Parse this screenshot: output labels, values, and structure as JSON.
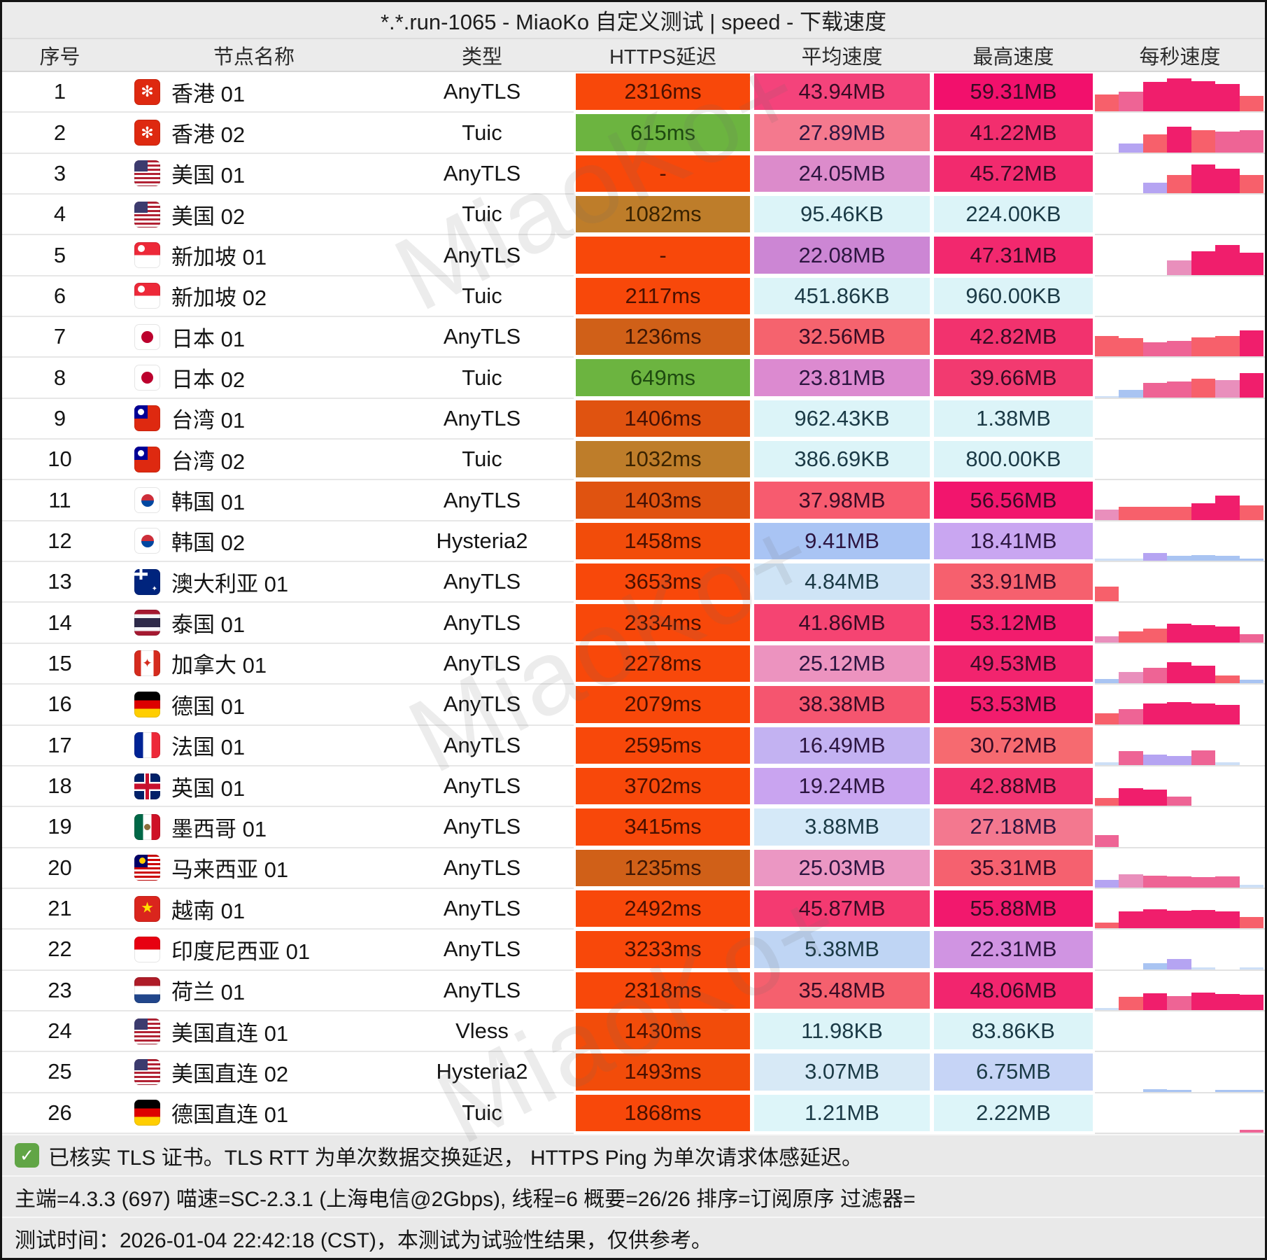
{
  "title": "*.*.run-1065 - MiaoKo 自定义测试 | speed - 下载速度",
  "columns": [
    "序号",
    "节点名称",
    "类型",
    "HTTPS延迟",
    "平均速度",
    "最高速度",
    "每秒速度"
  ],
  "watermark": "MiaoKo+",
  "bar_palette": {
    "C": "#F7606B",
    "P": "#F01E6C",
    "M": "#EE6495",
    "R": "#E98FBC",
    "U": "#B5A4F2",
    "B": "#A9C4F2",
    "L": "#CDDFF6"
  },
  "rows": [
    {
      "seq": "1",
      "flag": "hk",
      "name": "香港 01",
      "type": "AnyTLS",
      "lat": "2316ms",
      "lat_bg": "#F8480A",
      "lat_fg": "#4A1000",
      "avg": "43.94MB",
      "avg_bg": "#F4437B",
      "max": "59.31MB",
      "max_bg": "#F2106C",
      "bars": [
        [
          "C",
          45
        ],
        [
          "M",
          52
        ],
        [
          "P",
          78
        ],
        [
          "P",
          88
        ],
        [
          "P",
          80
        ],
        [
          "P",
          72
        ],
        [
          "C",
          42
        ]
      ]
    },
    {
      "seq": "2",
      "flag": "hk",
      "name": "香港 02",
      "type": "Tuic",
      "lat": "615ms",
      "lat_bg": "#6CB440",
      "lat_fg": "#1E4A10",
      "avg": "27.89MB",
      "avg_bg": "#F4798E",
      "max": "41.22MB",
      "max_bg": "#F22E6E",
      "bars": [
        [
          "",
          0
        ],
        [
          "U",
          24
        ],
        [
          "C",
          48
        ],
        [
          "P",
          68
        ],
        [
          "C",
          58
        ],
        [
          "M",
          55
        ],
        [
          "M",
          58
        ]
      ]
    },
    {
      "seq": "3",
      "flag": "us",
      "name": "美国 01",
      "type": "AnyTLS",
      "lat": "-",
      "lat_bg": "#F8480A",
      "lat_fg": "#4A1000",
      "avg": "24.05MB",
      "avg_bg": "#DC8BCB",
      "max": "45.72MB",
      "max_bg": "#F22A6E",
      "bars": [
        [
          "",
          0
        ],
        [
          "",
          0
        ],
        [
          "U",
          28
        ],
        [
          "C",
          48
        ],
        [
          "P",
          75
        ],
        [
          "P",
          64
        ],
        [
          "C",
          48
        ]
      ]
    },
    {
      "seq": "4",
      "flag": "us",
      "name": "美国 02",
      "type": "Tuic",
      "lat": "1082ms",
      "lat_bg": "#BE7D2A",
      "lat_fg": "#3A2300",
      "avg": "95.46KB",
      "avg_bg": "#DCF4F8",
      "max": "224.00KB",
      "max_bg": "#DCF4F8",
      "bars": []
    },
    {
      "seq": "5",
      "flag": "sg",
      "name": "新加坡 01",
      "type": "AnyTLS",
      "lat": "-",
      "lat_bg": "#F8480A",
      "lat_fg": "#4A1000",
      "avg": "22.08MB",
      "avg_bg": "#CC86D4",
      "max": "47.31MB",
      "max_bg": "#F2286E",
      "bars": [
        [
          "",
          0
        ],
        [
          "",
          0
        ],
        [
          "",
          0
        ],
        [
          "R",
          38
        ],
        [
          "P",
          62
        ],
        [
          "P",
          78
        ],
        [
          "P",
          58
        ]
      ]
    },
    {
      "seq": "6",
      "flag": "sg",
      "name": "新加坡 02",
      "type": "Tuic",
      "lat": "2117ms",
      "lat_bg": "#F8480A",
      "lat_fg": "#4A1000",
      "avg": "451.86KB",
      "avg_bg": "#DCF4F8",
      "max": "960.00KB",
      "max_bg": "#DCF4F8",
      "bars": []
    },
    {
      "seq": "7",
      "flag": "jp",
      "name": "日本 01",
      "type": "AnyTLS",
      "lat": "1236ms",
      "lat_bg": "#D06018",
      "lat_fg": "#401704",
      "avg": "32.56MB",
      "avg_bg": "#F5636E",
      "max": "42.82MB",
      "max_bg": "#F2326E",
      "bars": [
        [
          "C",
          55
        ],
        [
          "C",
          48
        ],
        [
          "M",
          38
        ],
        [
          "M",
          42
        ],
        [
          "C",
          50
        ],
        [
          "C",
          55
        ],
        [
          "P",
          68
        ]
      ]
    },
    {
      "seq": "8",
      "flag": "jp",
      "name": "日本 02",
      "type": "Tuic",
      "lat": "649ms",
      "lat_bg": "#6CB440",
      "lat_fg": "#1E4A10",
      "avg": "23.81MB",
      "avg_bg": "#DC8AD0",
      "max": "39.66MB",
      "max_bg": "#F23A70",
      "bars": [
        [
          "L",
          4
        ],
        [
          "B",
          20
        ],
        [
          "M",
          38
        ],
        [
          "M",
          42
        ],
        [
          "C",
          50
        ],
        [
          "R",
          46
        ],
        [
          "P",
          64
        ]
      ]
    },
    {
      "seq": "9",
      "flag": "tw",
      "name": "台湾 01",
      "type": "AnyTLS",
      "lat": "1406ms",
      "lat_bg": "#E05310",
      "lat_fg": "#441104",
      "avg": "962.43KB",
      "avg_bg": "#DCF4F8",
      "max": "1.38MB",
      "max_bg": "#DCF4F8",
      "bars": []
    },
    {
      "seq": "10",
      "flag": "tw",
      "name": "台湾 02",
      "type": "Tuic",
      "lat": "1032ms",
      "lat_bg": "#BE7D2A",
      "lat_fg": "#3A2300",
      "avg": "386.69KB",
      "avg_bg": "#DCF4F8",
      "max": "800.00KB",
      "max_bg": "#DCF4F8",
      "bars": []
    },
    {
      "seq": "11",
      "flag": "kr",
      "name": "韩国 01",
      "type": "AnyTLS",
      "lat": "1403ms",
      "lat_bg": "#E05310",
      "lat_fg": "#441104",
      "avg": "37.98MB",
      "avg_bg": "#F75B6F",
      "max": "56.56MB",
      "max_bg": "#F2156D",
      "bars": [
        [
          "R",
          28
        ],
        [
          "C",
          34
        ],
        [
          "C",
          35
        ],
        [
          "C",
          35
        ],
        [
          "P",
          44
        ],
        [
          "P",
          64
        ],
        [
          "C",
          38
        ]
      ]
    },
    {
      "seq": "12",
      "flag": "kr",
      "name": "韩国 02",
      "type": "Hysteria2",
      "lat": "1458ms",
      "lat_bg": "#F24C0A",
      "lat_fg": "#4A1000",
      "avg": "9.41MB",
      "avg_bg": "#A9C4F4",
      "max": "18.41MB",
      "max_bg": "#C9A6F1",
      "bars": [
        [
          "L",
          5
        ],
        [
          "L",
          5
        ],
        [
          "U",
          20
        ],
        [
          "B",
          13
        ],
        [
          "B",
          15
        ],
        [
          "B",
          13
        ],
        [
          "B",
          5
        ]
      ]
    },
    {
      "seq": "13",
      "flag": "au",
      "name": "澳大利亚 01",
      "type": "AnyTLS",
      "lat": "3653ms",
      "lat_bg": "#F8480A",
      "lat_fg": "#4A1000",
      "avg": "4.84MB",
      "avg_bg": "#CFE4F6",
      "max": "33.91MB",
      "max_bg": "#F6606E",
      "bars": [
        [
          "C",
          40
        ],
        [
          "",
          0
        ],
        [
          "",
          0
        ],
        [
          "",
          0
        ],
        [
          "",
          0
        ],
        [
          "",
          0
        ],
        [
          "",
          0
        ]
      ]
    },
    {
      "seq": "14",
      "flag": "th",
      "name": "泰国 01",
      "type": "AnyTLS",
      "lat": "2334ms",
      "lat_bg": "#F8480A",
      "lat_fg": "#4A1000",
      "avg": "41.86MB",
      "avg_bg": "#F54472",
      "max": "53.12MB",
      "max_bg": "#F21C6D",
      "bars": [
        [
          "R",
          16
        ],
        [
          "C",
          30
        ],
        [
          "C",
          36
        ],
        [
          "P",
          50
        ],
        [
          "P",
          46
        ],
        [
          "P",
          42
        ],
        [
          "M",
          22
        ]
      ]
    },
    {
      "seq": "15",
      "flag": "ca",
      "name": "加拿大 01",
      "type": "AnyTLS",
      "lat": "2278ms",
      "lat_bg": "#F8480A",
      "lat_fg": "#4A1000",
      "avg": "25.12MB",
      "avg_bg": "#EC93BF",
      "max": "49.53MB",
      "max_bg": "#F2246E",
      "bars": [
        [
          "B",
          12
        ],
        [
          "R",
          30
        ],
        [
          "M",
          40
        ],
        [
          "P",
          56
        ],
        [
          "P",
          46
        ],
        [
          "C",
          20
        ],
        [
          "B",
          10
        ]
      ]
    },
    {
      "seq": "16",
      "flag": "de",
      "name": "德国 01",
      "type": "AnyTLS",
      "lat": "2079ms",
      "lat_bg": "#F8480A",
      "lat_fg": "#4A1000",
      "avg": "38.38MB",
      "avg_bg": "#F5556F",
      "max": "53.53MB",
      "max_bg": "#F21C6D",
      "bars": [
        [
          "C",
          28
        ],
        [
          "M",
          40
        ],
        [
          "P",
          54
        ],
        [
          "P",
          58
        ],
        [
          "P",
          54
        ],
        [
          "P",
          50
        ],
        [
          "",
          0
        ]
      ]
    },
    {
      "seq": "17",
      "flag": "fr",
      "name": "法国 01",
      "type": "AnyTLS",
      "lat": "2595ms",
      "lat_bg": "#F8480A",
      "lat_fg": "#4A1000",
      "avg": "16.49MB",
      "avg_bg": "#C3B2F2",
      "max": "30.72MB",
      "max_bg": "#F66A70",
      "bars": [
        [
          "L",
          8
        ],
        [
          "M",
          36
        ],
        [
          "U",
          28
        ],
        [
          "U",
          24
        ],
        [
          "M",
          38
        ],
        [
          "L",
          8
        ],
        [
          "",
          0
        ]
      ]
    },
    {
      "seq": "18",
      "flag": "gb",
      "name": "英国 01",
      "type": "AnyTLS",
      "lat": "3702ms",
      "lat_bg": "#F8480A",
      "lat_fg": "#4A1000",
      "avg": "19.24MB",
      "avg_bg": "#C9A4F0",
      "max": "42.88MB",
      "max_bg": "#F23270",
      "bars": [
        [
          "C",
          20
        ],
        [
          "P",
          46
        ],
        [
          "P",
          42
        ],
        [
          "M",
          24
        ],
        [
          "",
          0
        ],
        [
          "",
          0
        ],
        [
          "",
          0
        ]
      ]
    },
    {
      "seq": "19",
      "flag": "mx",
      "name": "墨西哥 01",
      "type": "AnyTLS",
      "lat": "3415ms",
      "lat_bg": "#F8480A",
      "lat_fg": "#4A1000",
      "avg": "3.88MB",
      "avg_bg": "#D5E9F8",
      "max": "27.18MB",
      "max_bg": "#F3788F",
      "bars": [
        [
          "M",
          30
        ],
        [
          "",
          0
        ],
        [
          "",
          0
        ],
        [
          "",
          0
        ],
        [
          "",
          0
        ],
        [
          "",
          0
        ],
        [
          "",
          0
        ]
      ]
    },
    {
      "seq": "20",
      "flag": "my",
      "name": "马来西亚 01",
      "type": "AnyTLS",
      "lat": "1235ms",
      "lat_bg": "#D06018",
      "lat_fg": "#401704",
      "avg": "25.03MB",
      "avg_bg": "#EB97C3",
      "max": "35.31MB",
      "max_bg": "#F5616F",
      "bars": [
        [
          "U",
          20
        ],
        [
          "R",
          34
        ],
        [
          "M",
          32
        ],
        [
          "M",
          30
        ],
        [
          "M",
          28
        ],
        [
          "M",
          30
        ],
        [
          "L",
          8
        ]
      ]
    },
    {
      "seq": "21",
      "flag": "vn",
      "name": "越南 01",
      "type": "AnyTLS",
      "lat": "2492ms",
      "lat_bg": "#F8480A",
      "lat_fg": "#4A1000",
      "avg": "45.87MB",
      "avg_bg": "#F43A71",
      "max": "55.88MB",
      "max_bg": "#F2186D",
      "bars": [
        [
          "C",
          16
        ],
        [
          "P",
          44
        ],
        [
          "P",
          50
        ],
        [
          "P",
          46
        ],
        [
          "P",
          48
        ],
        [
          "P",
          44
        ],
        [
          "C",
          30
        ]
      ]
    },
    {
      "seq": "22",
      "flag": "id",
      "name": "印度尼西亚 01",
      "type": "AnyTLS",
      "lat": "3233ms",
      "lat_bg": "#F8480A",
      "lat_fg": "#4A1000",
      "avg": "5.38MB",
      "avg_bg": "#BFD5F4",
      "max": "22.31MB",
      "max_bg": "#D094E2",
      "bars": [
        [
          "",
          0
        ],
        [
          "",
          0
        ],
        [
          "B",
          16
        ],
        [
          "U",
          26
        ],
        [
          "L",
          4
        ],
        [
          "",
          0
        ],
        [
          "L",
          4
        ]
      ]
    },
    {
      "seq": "23",
      "flag": "nl",
      "name": "荷兰 01",
      "type": "AnyTLS",
      "lat": "2318ms",
      "lat_bg": "#F8480A",
      "lat_fg": "#4A1000",
      "avg": "35.48MB",
      "avg_bg": "#F5606E",
      "max": "48.06MB",
      "max_bg": "#F2256E",
      "bars": [
        [
          "L",
          6
        ],
        [
          "C",
          34
        ],
        [
          "P",
          44
        ],
        [
          "M",
          36
        ],
        [
          "P",
          46
        ],
        [
          "P",
          42
        ],
        [
          "P",
          40
        ]
      ]
    },
    {
      "seq": "24",
      "flag": "us",
      "name": "美国直连 01",
      "type": "Vless",
      "lat": "1430ms",
      "lat_bg": "#F24C0A",
      "lat_fg": "#4A1000",
      "avg": "11.98KB",
      "avg_bg": "#DCF4F8",
      "max": "83.86KB",
      "max_bg": "#DCF4F8",
      "bars": []
    },
    {
      "seq": "25",
      "flag": "us",
      "name": "美国直连 02",
      "type": "Hysteria2",
      "lat": "1493ms",
      "lat_bg": "#F24C0A",
      "lat_fg": "#4A1000",
      "avg": "3.07MB",
      "avg_bg": "#D7E9F6",
      "max": "6.75MB",
      "max_bg": "#C6D4F6",
      "bars": [
        [
          "",
          0
        ],
        [
          "",
          0
        ],
        [
          "B",
          6
        ],
        [
          "B",
          5
        ],
        [
          "",
          0
        ],
        [
          "B",
          5
        ],
        [
          "B",
          4
        ]
      ]
    },
    {
      "seq": "26",
      "flag": "de",
      "name": "德国直连 01",
      "type": "Tuic",
      "lat": "1868ms",
      "lat_bg": "#F8480A",
      "lat_fg": "#4A1000",
      "avg": "1.21MB",
      "avg_bg": "#DDF5F9",
      "max": "2.22MB",
      "max_bg": "#DDF5F9",
      "bars": [
        [
          "",
          0
        ],
        [
          "",
          0
        ],
        [
          "",
          0
        ],
        [
          "",
          0
        ],
        [
          "",
          0
        ],
        [
          "",
          0
        ],
        [
          "M",
          8
        ]
      ]
    }
  ],
  "footer": {
    "check_glyph": "✓",
    "tls_note": "已核实 TLS 证书。TLS RTT 为单次数据交换延迟， HTTPS Ping 为单次请求体感延迟。",
    "config_line": "主端=4.3.3 (697) 喵速=SC-2.3.1 (上海电信@2Gbps), 线程=6 概要=26/26 排序=订阅原序 过滤器=",
    "time_line": "测试时间：2026-01-04 22:42:18 (CST)，本测试为试验性结果，仅供参考。"
  }
}
